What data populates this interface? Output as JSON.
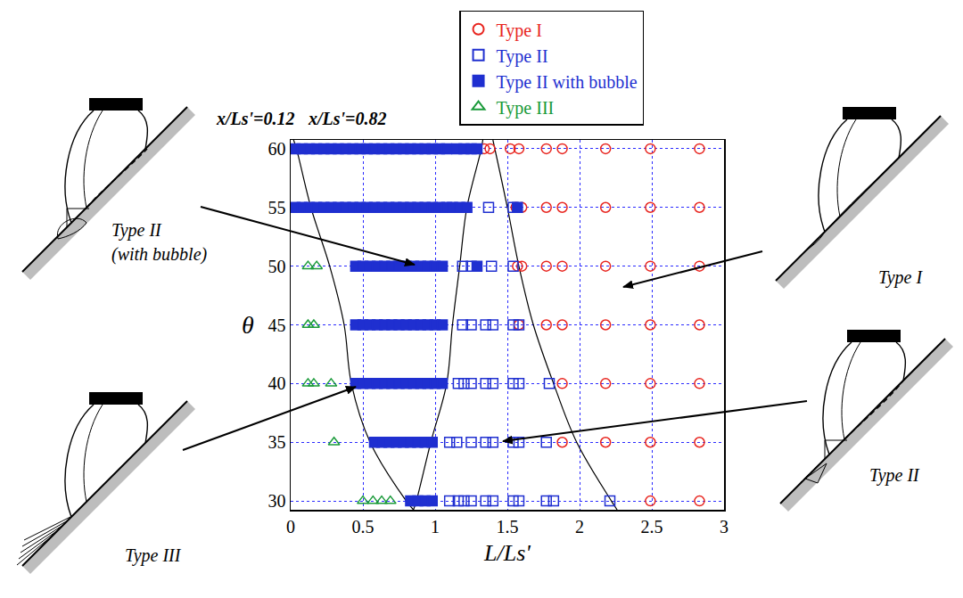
{
  "chart_data": {
    "type": "scatter",
    "x_label": "L/Ls'",
    "y_label": "θ",
    "xlim": [
      0,
      3
    ],
    "ylim": [
      29.25,
      60.75
    ],
    "xticks": [
      0,
      0.5,
      1,
      1.5,
      2,
      2.5,
      3
    ],
    "yticks": [
      30,
      35,
      40,
      45,
      50,
      55,
      60
    ],
    "grid": true,
    "legend": "top",
    "series": [
      {
        "type": "line",
        "color": "#000000",
        "line_style": "solid",
        "x": [
          0.02,
          0.04,
          0.14,
          0.27,
          0.37,
          0.42,
          0.55,
          0.8,
          0.85
        ],
        "y": [
          60.75,
          60,
          55,
          50,
          45,
          40,
          35,
          30,
          29.25
        ]
      },
      {
        "type": "line",
        "color": "#000000",
        "line_style": "solid",
        "x": [
          0.85,
          0.87,
          0.97,
          1.08,
          1.12,
          1.17,
          1.22,
          1.32,
          1.33
        ],
        "y": [
          29.25,
          30,
          35,
          40,
          45,
          50,
          55,
          60,
          60.75
        ]
      },
      {
        "type": "line",
        "color": "#000000",
        "line_style": "solid",
        "x": [
          1.4,
          1.5,
          1.58,
          1.68,
          1.82,
          1.98,
          2.22,
          2.26
        ],
        "y": [
          60.75,
          55,
          50,
          45,
          40,
          35,
          30,
          29.25
        ]
      },
      {
        "name": "Type I",
        "color": "#e8251f",
        "marker": "open-circle",
        "x": [
          1.34,
          1.38,
          1.52,
          1.58,
          1.77,
          1.88,
          2.18,
          2.49,
          2.83,
          1.56,
          1.6,
          1.77,
          1.88,
          2.18,
          2.49,
          2.83,
          1.57,
          1.6,
          1.77,
          1.88,
          2.18,
          2.49,
          2.83,
          1.58,
          1.77,
          1.88,
          2.18,
          2.49,
          2.83,
          1.88,
          2.18,
          2.49,
          2.83,
          1.88,
          2.18,
          2.49,
          2.83,
          2.49,
          2.83
        ],
        "y": [
          60,
          60,
          60,
          60,
          60,
          60,
          60,
          60,
          60,
          55,
          55,
          55,
          55,
          55,
          55,
          55,
          50,
          50,
          50,
          50,
          50,
          50,
          50,
          45,
          45,
          45,
          45,
          45,
          45,
          40,
          40,
          40,
          40,
          35,
          35,
          35,
          35,
          30,
          30
        ]
      },
      {
        "name": "Type II",
        "color": "#1f2fd0",
        "marker": "open-square",
        "x": [
          1.37,
          1.54,
          1.19,
          1.25,
          1.39,
          1.54,
          1.19,
          1.25,
          1.35,
          1.4,
          1.54,
          1.58,
          1.16,
          1.2,
          1.25,
          1.35,
          1.4,
          1.54,
          1.58,
          1.79,
          1.1,
          1.15,
          1.25,
          1.35,
          1.4,
          1.54,
          1.58,
          1.77,
          1.1,
          1.16,
          1.2,
          1.25,
          1.35,
          1.4,
          1.54,
          1.58,
          1.77,
          1.82,
          2.21
        ],
        "y": [
          55,
          55,
          50,
          50,
          50,
          50,
          45,
          45,
          45,
          45,
          45,
          45,
          40,
          40,
          40,
          40,
          40,
          40,
          40,
          40,
          35,
          35,
          35,
          35,
          35,
          35,
          35,
          35,
          30,
          30,
          30,
          30,
          30,
          30,
          30,
          30,
          30,
          30,
          30
        ]
      },
      {
        "name": "Type II with bubble",
        "color": "#1f2fd0",
        "marker": "square",
        "x": [
          0.03,
          0.08,
          0.13,
          0.18,
          0.23,
          0.28,
          0.33,
          0.38,
          0.43,
          0.48,
          0.53,
          0.58,
          0.63,
          0.68,
          0.73,
          0.78,
          0.83,
          0.88,
          0.93,
          0.98,
          1.03,
          1.08,
          1.15,
          1.2,
          1.25,
          1.29,
          0.03,
          0.08,
          0.13,
          0.18,
          0.23,
          0.28,
          0.33,
          0.38,
          0.43,
          0.48,
          0.53,
          0.58,
          0.63,
          0.68,
          0.73,
          0.78,
          0.83,
          0.88,
          0.93,
          0.98,
          1.03,
          1.08,
          1.12,
          1.17,
          1.22,
          1.57,
          0.45,
          0.5,
          0.55,
          0.6,
          0.65,
          0.7,
          0.75,
          0.8,
          0.85,
          0.9,
          0.95,
          1.0,
          1.05,
          1.29,
          0.45,
          0.5,
          0.55,
          0.6,
          0.65,
          0.7,
          0.75,
          0.8,
          0.85,
          0.9,
          0.95,
          1.0,
          1.05,
          0.45,
          0.5,
          0.55,
          0.6,
          0.65,
          0.7,
          0.75,
          0.8,
          0.85,
          0.9,
          0.95,
          1.0,
          1.05,
          0.58,
          0.63,
          0.68,
          0.73,
          0.78,
          0.83,
          0.88,
          0.93,
          0.98,
          0.83,
          0.88,
          0.93,
          0.98
        ],
        "y": [
          60,
          60,
          60,
          60,
          60,
          60,
          60,
          60,
          60,
          60,
          60,
          60,
          60,
          60,
          60,
          60,
          60,
          60,
          60,
          60,
          60,
          60,
          60,
          60,
          60,
          60,
          55,
          55,
          55,
          55,
          55,
          55,
          55,
          55,
          55,
          55,
          55,
          55,
          55,
          55,
          55,
          55,
          55,
          55,
          55,
          55,
          55,
          55,
          55,
          55,
          55,
          55,
          50,
          50,
          50,
          50,
          50,
          50,
          50,
          50,
          50,
          50,
          50,
          50,
          50,
          50,
          45,
          45,
          45,
          45,
          45,
          45,
          45,
          45,
          45,
          45,
          45,
          45,
          45,
          40,
          40,
          40,
          40,
          40,
          40,
          40,
          40,
          40,
          40,
          40,
          40,
          40,
          35,
          35,
          35,
          35,
          35,
          35,
          35,
          35,
          35,
          30,
          30,
          30,
          30
        ]
      },
      {
        "name": "Type III",
        "color": "#1a9a3a",
        "marker": "open-triangle",
        "x": [
          0.12,
          0.18,
          0.12,
          0.16,
          0.12,
          0.16,
          0.28,
          0.3,
          0.5,
          0.57,
          0.63,
          0.69
        ],
        "y": [
          50,
          50,
          45,
          45,
          40,
          40,
          40,
          35,
          30,
          30,
          30,
          30
        ]
      }
    ],
    "annotations": [
      {
        "text": "x/Ls'=0.12"
      },
      {
        "text": "x/Ls'=0.82"
      }
    ],
    "insets": [
      {
        "label": [
          "Type II",
          "(with bubble)"
        ]
      },
      {
        "label": [
          "Type I"
        ]
      },
      {
        "label": [
          "Type III"
        ]
      },
      {
        "label": [
          "Type II"
        ]
      }
    ]
  }
}
